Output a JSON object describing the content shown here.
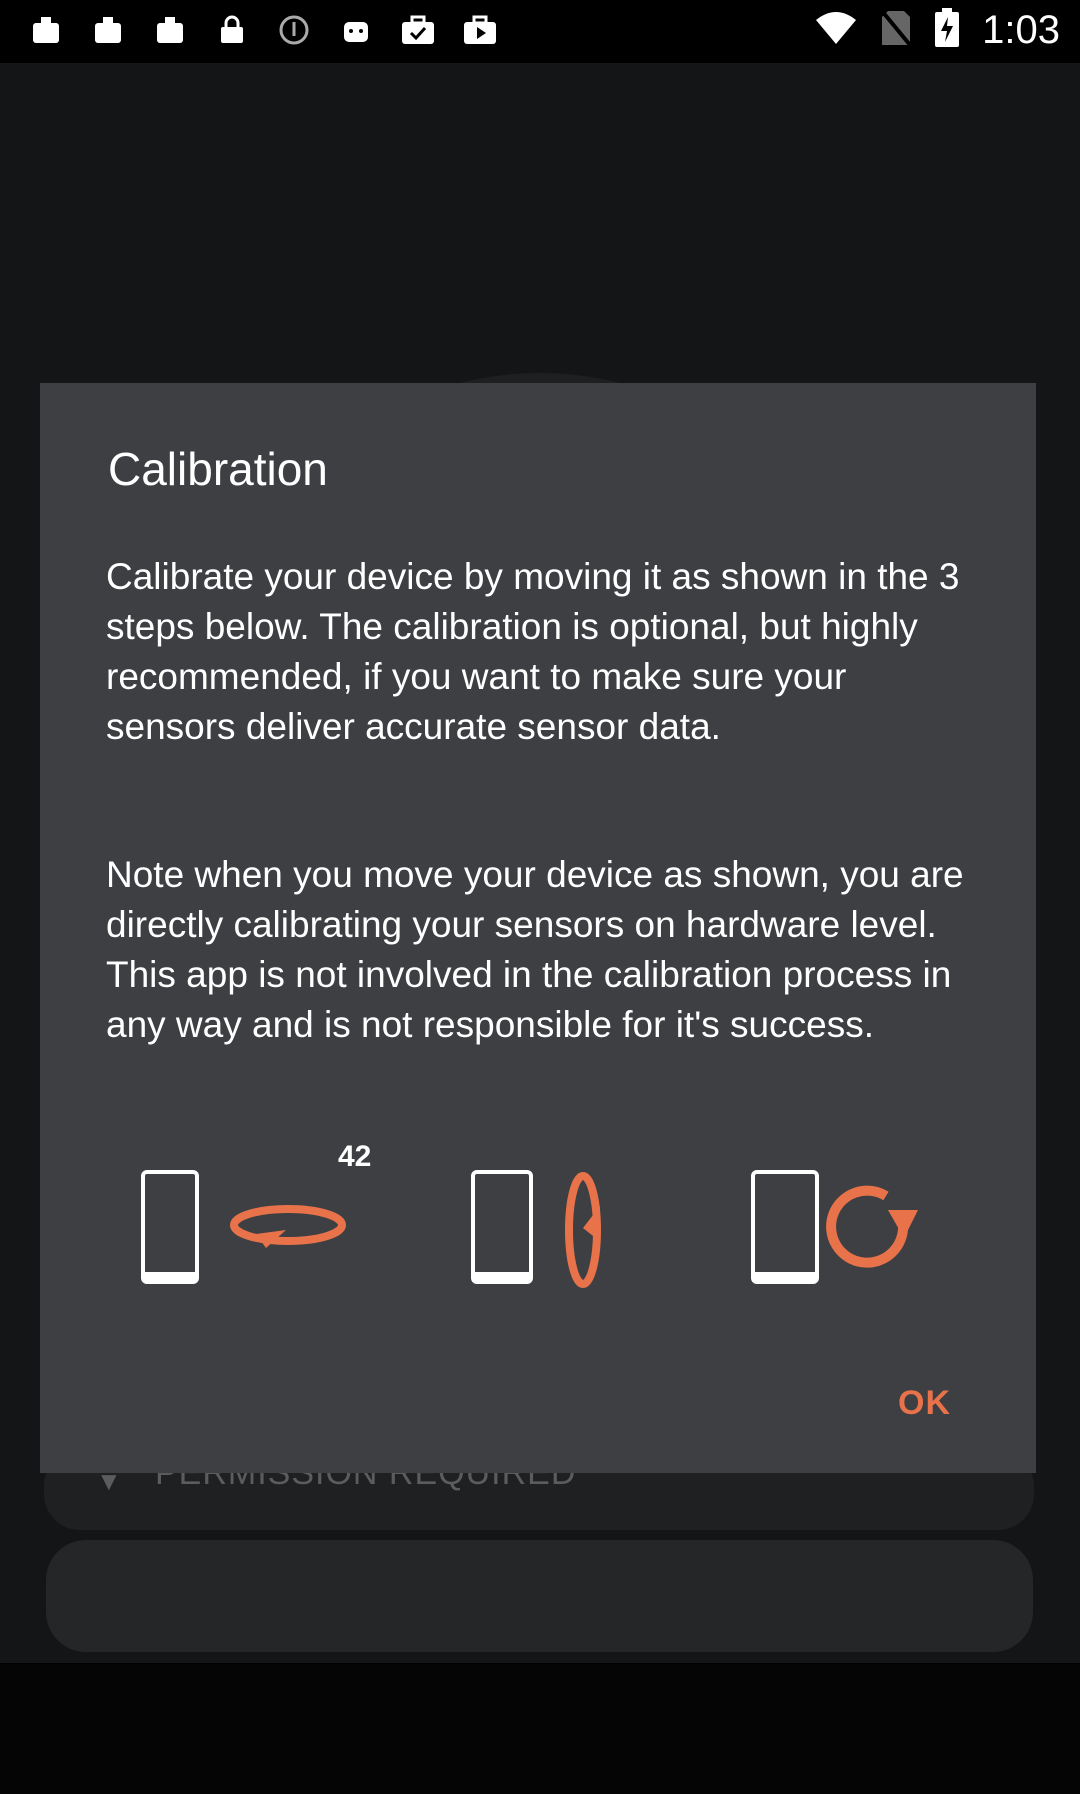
{
  "status_bar": {
    "time": "1:03",
    "left_icons": [
      "notification-icon",
      "notification-icon",
      "notification-icon",
      "lock-icon",
      "info-icon",
      "android-icon",
      "briefcase-check-icon",
      "briefcase-play-icon"
    ],
    "right_icons": [
      "wifi-icon",
      "no-sim-icon",
      "battery-charging-icon"
    ]
  },
  "background": {
    "permission_label": "PERMISSION REQUIRED"
  },
  "modal": {
    "title": "Calibration",
    "paragraph1": "Calibrate your device by moving it as shown in the 3 steps below. The calibration is optional, but highly recommended, if you want to make sure your sensors deliver accurate sensor data.",
    "paragraph2": "Note when you move your device as shown, you are directly calibrating your sensors on hardware level. This app is not involved in the calibration process in any way and is not responsible for it's success.",
    "steps": [
      {
        "icon": "rotate-horizontal-phone-icon",
        "label": "42"
      },
      {
        "icon": "rotate-vertical-phone-icon"
      },
      {
        "icon": "rotate-clockwise-phone-icon"
      }
    ],
    "ok_label": "OK"
  },
  "colors": {
    "modal_bg": "#3d3f43",
    "accent": "#e8734a"
  }
}
